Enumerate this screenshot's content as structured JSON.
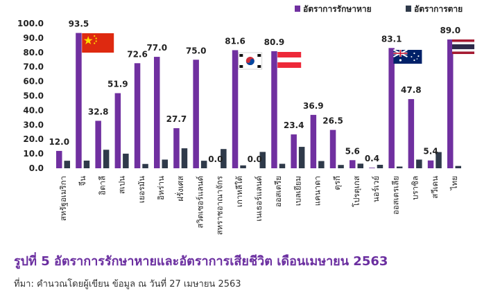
{
  "chart_data": {
    "type": "bar",
    "categories": [
      "สหรัฐอเมริกา",
      "จีน",
      "อิตาลี",
      "สเปน",
      "เยอรมัน",
      "อิหร่าน",
      "ฝรั่งเศส",
      "สวิตเซอร์แลนด์",
      "สหราชอาณาจักร",
      "เกาหลีใต้",
      "เนเธอร์แลนด์",
      "ออสเตรีย",
      "เบลเยียม",
      "แคนาดา",
      "ตุรกี",
      "โปรตุเกส",
      "นอร์เวย์",
      "ออสเตรเลีย",
      "บราซิล",
      "สวีเดน",
      "ไทย"
    ],
    "series": [
      {
        "name": "อัตราการรักษาหาย",
        "color": "#7030a0",
        "values": [
          12.0,
          93.5,
          32.8,
          51.9,
          72.6,
          77.0,
          27.7,
          75.0,
          0.0,
          81.6,
          0.0,
          80.9,
          23.4,
          36.9,
          26.5,
          5.6,
          0.4,
          83.1,
          47.8,
          5.4,
          89.0
        ]
      },
      {
        "name": "อัตราการตาย",
        "color": "#2f3a4a",
        "values": [
          5.2,
          5.3,
          12.8,
          10.1,
          3.0,
          6.0,
          13.8,
          5.2,
          13.3,
          2.0,
          11.3,
          3.1,
          14.8,
          5.0,
          2.3,
          3.2,
          2.4,
          1.2,
          6.0,
          11.2,
          1.6
        ]
      }
    ],
    "data_labels": [
      "12.0",
      "93.5",
      "32.8",
      "51.9",
      "72.6",
      "77.0",
      "27.7",
      "75.0",
      "0.0",
      "81.6",
      "0.0",
      "80.9",
      "23.4",
      "36.9",
      "26.5",
      "5.6",
      "0.4",
      "83.1",
      "47.8",
      "5.4",
      "89.0"
    ],
    "yticks": [
      "0.0",
      "10.0",
      "20.0",
      "30.0",
      "40.0",
      "50.0",
      "60.0",
      "70.0",
      "80.0",
      "90.0",
      "100.0"
    ],
    "ylim": [
      0,
      100
    ],
    "legend_position": "top-right",
    "grid": false,
    "flags": [
      {
        "category": "จีน",
        "flag": "china"
      },
      {
        "category": "เกาหลีใต้",
        "flag": "south-korea"
      },
      {
        "category": "ออสเตรีย",
        "flag": "austria"
      },
      {
        "category": "ออสเตรเลีย",
        "flag": "australia"
      },
      {
        "category": "ไทย",
        "flag": "thailand"
      }
    ]
  },
  "caption": "รูปที่ 5 อัตราการรักษาหายและอัตราการเสียชีวิต เดือนเมษายน 2563",
  "source": "ที่มา: คำนวณโดยผู้เขียน ข้อมูล ณ วันที่ 27 เมษายน 2563"
}
